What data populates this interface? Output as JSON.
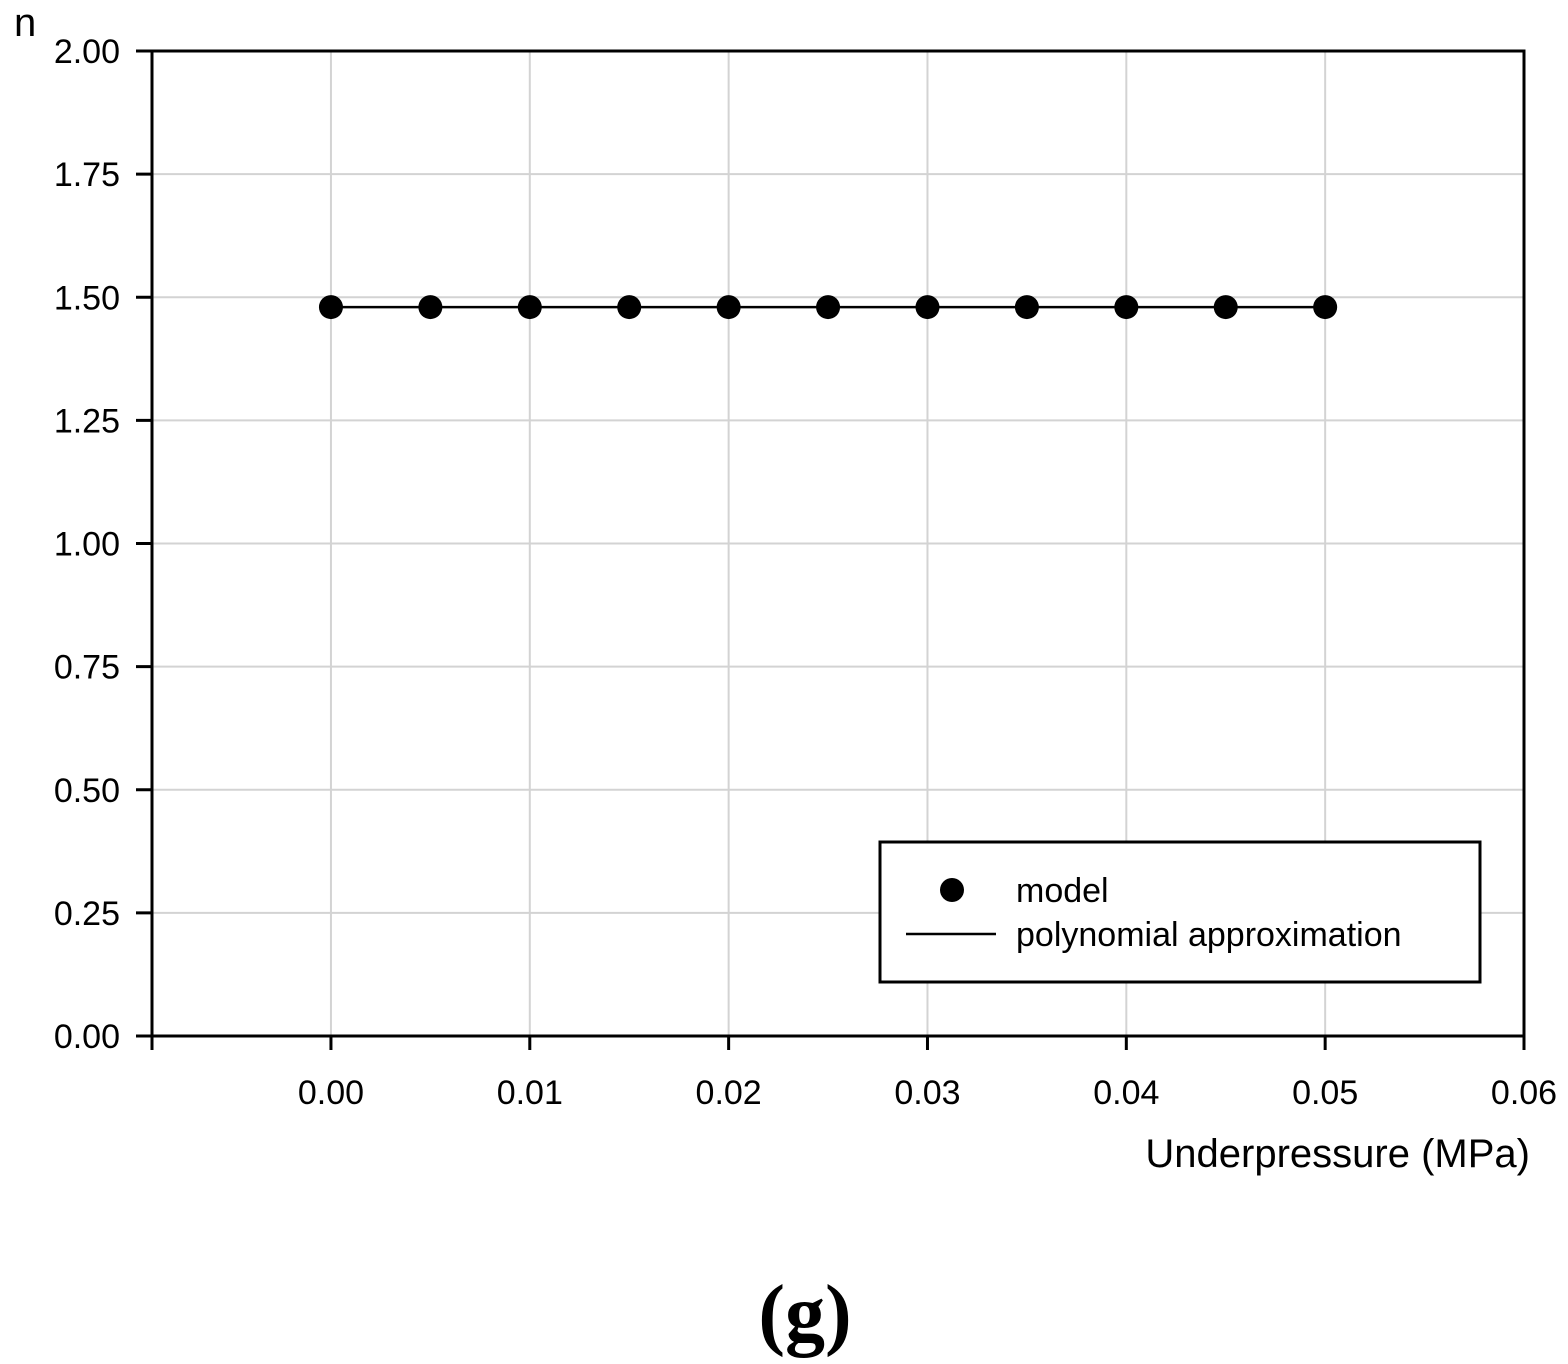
{
  "chart_data": {
    "type": "line",
    "ylabel": "n",
    "xlabel": "Underpressure (MPa)",
    "panel_label": "(g)",
    "xlim": [
      -0.009,
      0.06
    ],
    "ylim": [
      0,
      2
    ],
    "x_ticks": [
      0.0,
      0.01,
      0.02,
      0.03,
      0.04,
      0.05,
      0.06
    ],
    "x_tick_labels": [
      "0.00",
      "0.01",
      "0.02",
      "0.03",
      "0.04",
      "0.05",
      "0.06"
    ],
    "y_ticks": [
      0.0,
      0.25,
      0.5,
      0.75,
      1.0,
      1.25,
      1.5,
      1.75,
      2.0
    ],
    "y_tick_labels": [
      "0.00",
      "0.25",
      "0.50",
      "0.75",
      "1.00",
      "1.25",
      "1.50",
      "1.75",
      "2.00"
    ],
    "grid": true,
    "legend_position": "bottom-right",
    "series": [
      {
        "name": "model",
        "style": "markers",
        "x": [
          0.0,
          0.005,
          0.01,
          0.015,
          0.02,
          0.025,
          0.03,
          0.035,
          0.04,
          0.045,
          0.05
        ],
        "y": [
          1.48,
          1.48,
          1.48,
          1.48,
          1.48,
          1.48,
          1.48,
          1.48,
          1.48,
          1.48,
          1.48
        ]
      },
      {
        "name": "polynomial approximation",
        "style": "line",
        "x": [
          0.0,
          0.05
        ],
        "y": [
          1.48,
          1.48
        ]
      }
    ],
    "colors": {
      "marker": "#000000",
      "line": "#000000",
      "grid": "#d3d3d3",
      "axis": "#000000"
    }
  }
}
